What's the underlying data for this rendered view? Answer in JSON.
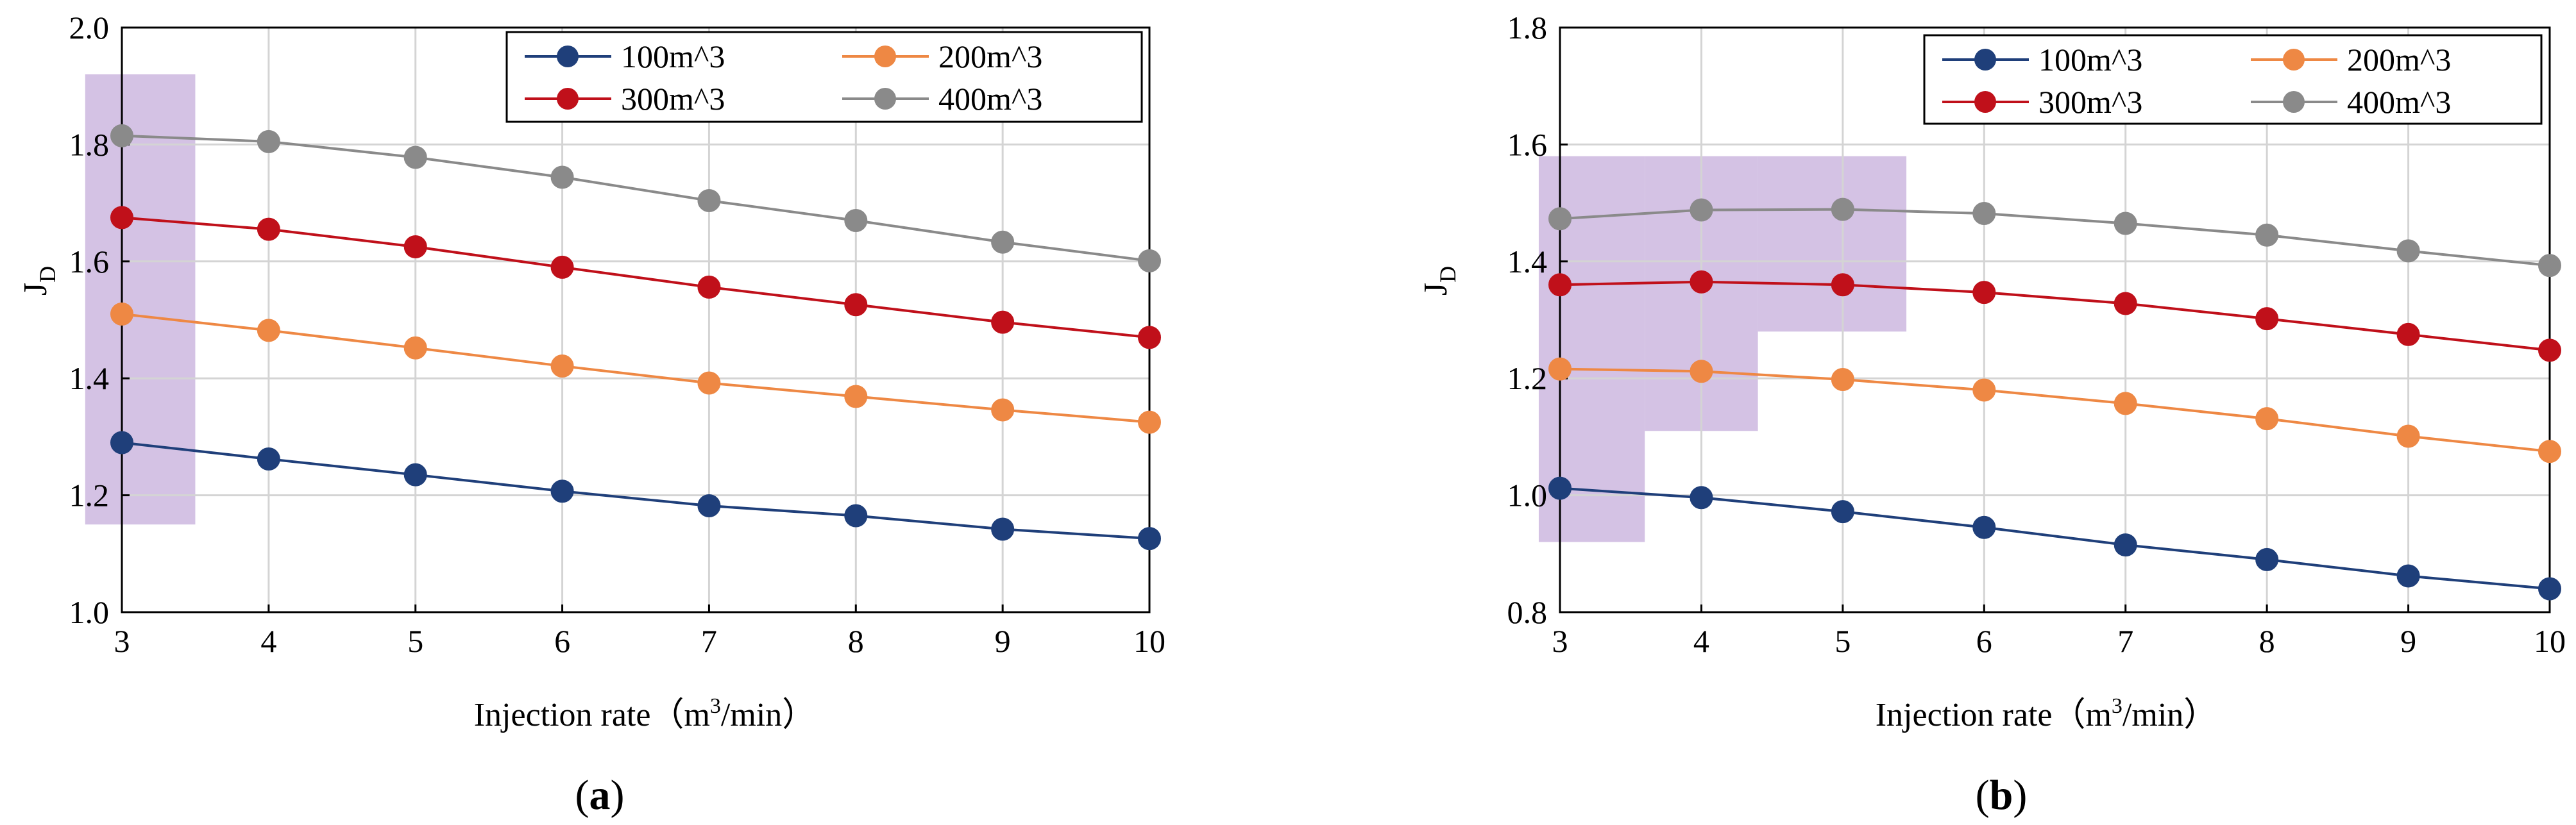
{
  "chart_data": [
    {
      "type": "line",
      "panel_label": "a",
      "xlabel_main": "Injection rate（m",
      "xlabel_sup": "3",
      "xlabel_tail": "/min）",
      "ylabel_main": "J",
      "ylabel_sub": "D",
      "xlim": [
        3,
        10
      ],
      "ylim": [
        1.0,
        2.0
      ],
      "x": [
        3,
        4,
        5,
        6,
        7,
        8,
        9,
        10
      ],
      "x_ticks": [
        "3",
        "4",
        "5",
        "6",
        "7",
        "8",
        "9",
        "10"
      ],
      "y_ticks": [
        1.0,
        1.2,
        1.4,
        1.6,
        1.8,
        2.0
      ],
      "y_tick_labels": [
        "1.0",
        "1.2",
        "1.4",
        "1.6",
        "1.8",
        "2.0"
      ],
      "grid": true,
      "legend_position": "top-right",
      "series": [
        {
          "name": "100m^3",
          "color": "#1f3f7a",
          "values": [
            1.29,
            1.262,
            1.235,
            1.207,
            1.182,
            1.165,
            1.142,
            1.126
          ]
        },
        {
          "name": "200m^3",
          "color": "#ee8844",
          "values": [
            1.51,
            1.482,
            1.452,
            1.421,
            1.392,
            1.369,
            1.346,
            1.325
          ]
        },
        {
          "name": "300m^3",
          "color": "#c0101a",
          "values": [
            1.675,
            1.655,
            1.625,
            1.59,
            1.556,
            1.526,
            1.496,
            1.47
          ]
        },
        {
          "name": "400m^3",
          "color": "#8a8a8a",
          "values": [
            1.815,
            1.805,
            1.778,
            1.744,
            1.704,
            1.67,
            1.633,
            1.601
          ]
        }
      ],
      "highlights": [
        {
          "x_range": [
            2.75,
            3.5
          ],
          "y_range": [
            1.15,
            1.92
          ],
          "color": "#c9b3dd"
        }
      ]
    },
    {
      "type": "line",
      "panel_label": "b",
      "xlabel_main": "Injection rate（m",
      "xlabel_sup": "3",
      "xlabel_tail": "/min）",
      "ylabel_main": "J",
      "ylabel_sub": "D",
      "xlim": [
        3,
        10
      ],
      "ylim": [
        0.8,
        1.8
      ],
      "x": [
        3,
        4,
        5,
        6,
        7,
        8,
        9,
        10
      ],
      "x_ticks": [
        "3",
        "4",
        "5",
        "6",
        "7",
        "8",
        "9",
        "10"
      ],
      "y_ticks": [
        0.8,
        1.0,
        1.2,
        1.4,
        1.6,
        1.8
      ],
      "y_tick_labels": [
        "0.8",
        "1.0",
        "1.2",
        "1.4",
        "1.6",
        "1.8"
      ],
      "grid": true,
      "legend_position": "top-right",
      "series": [
        {
          "name": "100m^3",
          "color": "#1f3f7a",
          "values": [
            1.012,
            0.996,
            0.972,
            0.945,
            0.915,
            0.89,
            0.862,
            0.84
          ]
        },
        {
          "name": "200m^3",
          "color": "#ee8844",
          "values": [
            1.216,
            1.212,
            1.198,
            1.18,
            1.157,
            1.131,
            1.101,
            1.075
          ]
        },
        {
          "name": "300m^3",
          "color": "#c0101a",
          "values": [
            1.36,
            1.365,
            1.36,
            1.347,
            1.328,
            1.302,
            1.275,
            1.248
          ]
        },
        {
          "name": "400m^3",
          "color": "#8a8a8a",
          "values": [
            1.473,
            1.488,
            1.489,
            1.482,
            1.465,
            1.445,
            1.418,
            1.393
          ]
        }
      ],
      "highlights": [
        {
          "x_range": [
            2.85,
            3.6
          ],
          "y_range": [
            0.92,
            1.58
          ],
          "color": "#c9b3dd"
        },
        {
          "x_range": [
            3.6,
            4.4
          ],
          "y_range": [
            1.11,
            1.58
          ],
          "color": "#c9b3dd"
        },
        {
          "x_range": [
            4.4,
            5.45
          ],
          "y_range": [
            1.28,
            1.58
          ],
          "color": "#c9b3dd"
        }
      ]
    }
  ]
}
